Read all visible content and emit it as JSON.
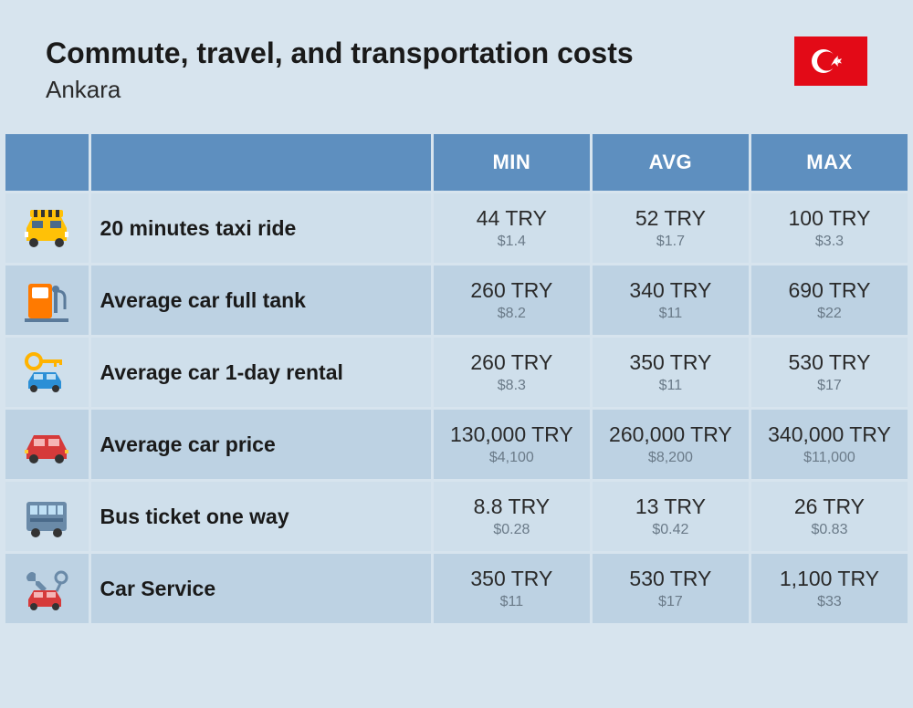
{
  "header": {
    "title": "Commute, travel, and transportation costs",
    "subtitle": "Ankara",
    "flag_country": "Turkey",
    "flag_bg_color": "#e30a17",
    "flag_symbol_color": "#ffffff"
  },
  "table": {
    "header_bg_color": "#5e8fbf",
    "header_text_color": "#ffffff",
    "row_odd_bg": "#cfdfeb",
    "row_even_bg": "#bdd2e3",
    "primary_text_color": "#2a2a2a",
    "secondary_text_color": "#6a7a88",
    "columns": [
      "",
      "",
      "MIN",
      "AVG",
      "MAX"
    ],
    "rows": [
      {
        "icon": "taxi",
        "label": "20 minutes taxi ride",
        "min": {
          "primary": "44 TRY",
          "secondary": "$1.4"
        },
        "avg": {
          "primary": "52 TRY",
          "secondary": "$1.7"
        },
        "max": {
          "primary": "100 TRY",
          "secondary": "$3.3"
        }
      },
      {
        "icon": "fuel-pump",
        "label": "Average car full tank",
        "min": {
          "primary": "260 TRY",
          "secondary": "$8.2"
        },
        "avg": {
          "primary": "340 TRY",
          "secondary": "$11"
        },
        "max": {
          "primary": "690 TRY",
          "secondary": "$22"
        }
      },
      {
        "icon": "car-key",
        "label": "Average car 1-day rental",
        "min": {
          "primary": "260 TRY",
          "secondary": "$8.3"
        },
        "avg": {
          "primary": "350 TRY",
          "secondary": "$11"
        },
        "max": {
          "primary": "530 TRY",
          "secondary": "$17"
        }
      },
      {
        "icon": "car-red",
        "label": "Average car price",
        "min": {
          "primary": "130,000 TRY",
          "secondary": "$4,100"
        },
        "avg": {
          "primary": "260,000 TRY",
          "secondary": "$8,200"
        },
        "max": {
          "primary": "340,000 TRY",
          "secondary": "$11,000"
        }
      },
      {
        "icon": "bus",
        "label": "Bus ticket one way",
        "min": {
          "primary": "8.8 TRY",
          "secondary": "$0.28"
        },
        "avg": {
          "primary": "13 TRY",
          "secondary": "$0.42"
        },
        "max": {
          "primary": "26 TRY",
          "secondary": "$0.83"
        }
      },
      {
        "icon": "wrench-car",
        "label": "Car Service",
        "min": {
          "primary": "350 TRY",
          "secondary": "$11"
        },
        "avg": {
          "primary": "530 TRY",
          "secondary": "$17"
        },
        "max": {
          "primary": "1,100 TRY",
          "secondary": "$33"
        }
      }
    ]
  },
  "styling": {
    "page_bg": "#d7e4ee",
    "title_fontsize": 32,
    "subtitle_fontsize": 26,
    "header_fontsize": 22,
    "label_fontsize": 23,
    "primary_fontsize": 23,
    "secondary_fontsize": 16
  }
}
